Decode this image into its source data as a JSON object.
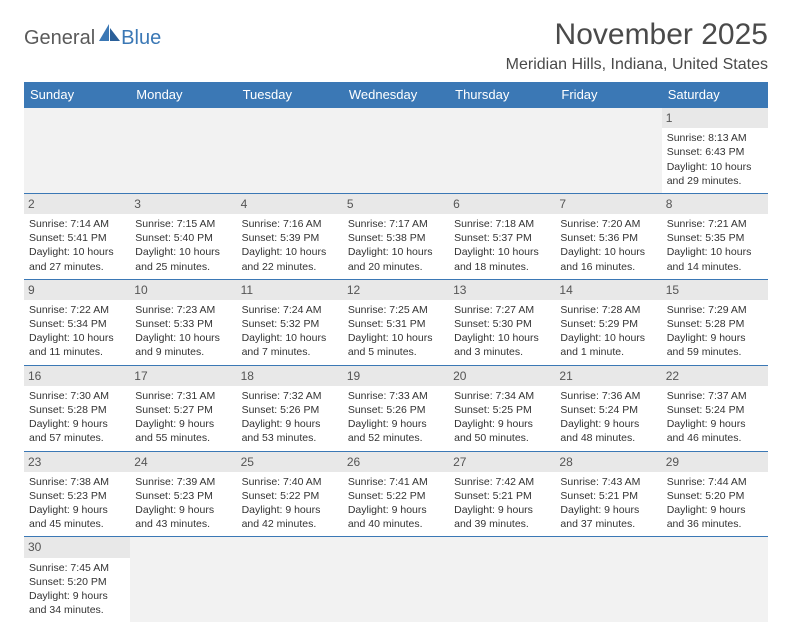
{
  "logo": {
    "part1": "General",
    "part2": "Blue"
  },
  "title": "November 2025",
  "location": "Meridian Hills, Indiana, United States",
  "day_headers": [
    "Sunday",
    "Monday",
    "Tuesday",
    "Wednesday",
    "Thursday",
    "Friday",
    "Saturday"
  ],
  "colors": {
    "header_bg": "#3b78b5",
    "header_fg": "#ffffff",
    "daynum_bg": "#e8e8e8",
    "empty_bg": "#f2f2f2",
    "border": "#3b78b5",
    "title_color": "#4a4a4a",
    "logo_gray": "#5a5a5a",
    "logo_blue": "#3b78b5"
  },
  "weeks": [
    [
      null,
      null,
      null,
      null,
      null,
      null,
      {
        "d": "1",
        "sr": "Sunrise: 8:13 AM",
        "ss": "Sunset: 6:43 PM",
        "dl": "Daylight: 10 hours and 29 minutes."
      }
    ],
    [
      {
        "d": "2",
        "sr": "Sunrise: 7:14 AM",
        "ss": "Sunset: 5:41 PM",
        "dl": "Daylight: 10 hours and 27 minutes."
      },
      {
        "d": "3",
        "sr": "Sunrise: 7:15 AM",
        "ss": "Sunset: 5:40 PM",
        "dl": "Daylight: 10 hours and 25 minutes."
      },
      {
        "d": "4",
        "sr": "Sunrise: 7:16 AM",
        "ss": "Sunset: 5:39 PM",
        "dl": "Daylight: 10 hours and 22 minutes."
      },
      {
        "d": "5",
        "sr": "Sunrise: 7:17 AM",
        "ss": "Sunset: 5:38 PM",
        "dl": "Daylight: 10 hours and 20 minutes."
      },
      {
        "d": "6",
        "sr": "Sunrise: 7:18 AM",
        "ss": "Sunset: 5:37 PM",
        "dl": "Daylight: 10 hours and 18 minutes."
      },
      {
        "d": "7",
        "sr": "Sunrise: 7:20 AM",
        "ss": "Sunset: 5:36 PM",
        "dl": "Daylight: 10 hours and 16 minutes."
      },
      {
        "d": "8",
        "sr": "Sunrise: 7:21 AM",
        "ss": "Sunset: 5:35 PM",
        "dl": "Daylight: 10 hours and 14 minutes."
      }
    ],
    [
      {
        "d": "9",
        "sr": "Sunrise: 7:22 AM",
        "ss": "Sunset: 5:34 PM",
        "dl": "Daylight: 10 hours and 11 minutes."
      },
      {
        "d": "10",
        "sr": "Sunrise: 7:23 AM",
        "ss": "Sunset: 5:33 PM",
        "dl": "Daylight: 10 hours and 9 minutes."
      },
      {
        "d": "11",
        "sr": "Sunrise: 7:24 AM",
        "ss": "Sunset: 5:32 PM",
        "dl": "Daylight: 10 hours and 7 minutes."
      },
      {
        "d": "12",
        "sr": "Sunrise: 7:25 AM",
        "ss": "Sunset: 5:31 PM",
        "dl": "Daylight: 10 hours and 5 minutes."
      },
      {
        "d": "13",
        "sr": "Sunrise: 7:27 AM",
        "ss": "Sunset: 5:30 PM",
        "dl": "Daylight: 10 hours and 3 minutes."
      },
      {
        "d": "14",
        "sr": "Sunrise: 7:28 AM",
        "ss": "Sunset: 5:29 PM",
        "dl": "Daylight: 10 hours and 1 minute."
      },
      {
        "d": "15",
        "sr": "Sunrise: 7:29 AM",
        "ss": "Sunset: 5:28 PM",
        "dl": "Daylight: 9 hours and 59 minutes."
      }
    ],
    [
      {
        "d": "16",
        "sr": "Sunrise: 7:30 AM",
        "ss": "Sunset: 5:28 PM",
        "dl": "Daylight: 9 hours and 57 minutes."
      },
      {
        "d": "17",
        "sr": "Sunrise: 7:31 AM",
        "ss": "Sunset: 5:27 PM",
        "dl": "Daylight: 9 hours and 55 minutes."
      },
      {
        "d": "18",
        "sr": "Sunrise: 7:32 AM",
        "ss": "Sunset: 5:26 PM",
        "dl": "Daylight: 9 hours and 53 minutes."
      },
      {
        "d": "19",
        "sr": "Sunrise: 7:33 AM",
        "ss": "Sunset: 5:26 PM",
        "dl": "Daylight: 9 hours and 52 minutes."
      },
      {
        "d": "20",
        "sr": "Sunrise: 7:34 AM",
        "ss": "Sunset: 5:25 PM",
        "dl": "Daylight: 9 hours and 50 minutes."
      },
      {
        "d": "21",
        "sr": "Sunrise: 7:36 AM",
        "ss": "Sunset: 5:24 PM",
        "dl": "Daylight: 9 hours and 48 minutes."
      },
      {
        "d": "22",
        "sr": "Sunrise: 7:37 AM",
        "ss": "Sunset: 5:24 PM",
        "dl": "Daylight: 9 hours and 46 minutes."
      }
    ],
    [
      {
        "d": "23",
        "sr": "Sunrise: 7:38 AM",
        "ss": "Sunset: 5:23 PM",
        "dl": "Daylight: 9 hours and 45 minutes."
      },
      {
        "d": "24",
        "sr": "Sunrise: 7:39 AM",
        "ss": "Sunset: 5:23 PM",
        "dl": "Daylight: 9 hours and 43 minutes."
      },
      {
        "d": "25",
        "sr": "Sunrise: 7:40 AM",
        "ss": "Sunset: 5:22 PM",
        "dl": "Daylight: 9 hours and 42 minutes."
      },
      {
        "d": "26",
        "sr": "Sunrise: 7:41 AM",
        "ss": "Sunset: 5:22 PM",
        "dl": "Daylight: 9 hours and 40 minutes."
      },
      {
        "d": "27",
        "sr": "Sunrise: 7:42 AM",
        "ss": "Sunset: 5:21 PM",
        "dl": "Daylight: 9 hours and 39 minutes."
      },
      {
        "d": "28",
        "sr": "Sunrise: 7:43 AM",
        "ss": "Sunset: 5:21 PM",
        "dl": "Daylight: 9 hours and 37 minutes."
      },
      {
        "d": "29",
        "sr": "Sunrise: 7:44 AM",
        "ss": "Sunset: 5:20 PM",
        "dl": "Daylight: 9 hours and 36 minutes."
      }
    ],
    [
      {
        "d": "30",
        "sr": "Sunrise: 7:45 AM",
        "ss": "Sunset: 5:20 PM",
        "dl": "Daylight: 9 hours and 34 minutes."
      },
      null,
      null,
      null,
      null,
      null,
      null
    ]
  ]
}
